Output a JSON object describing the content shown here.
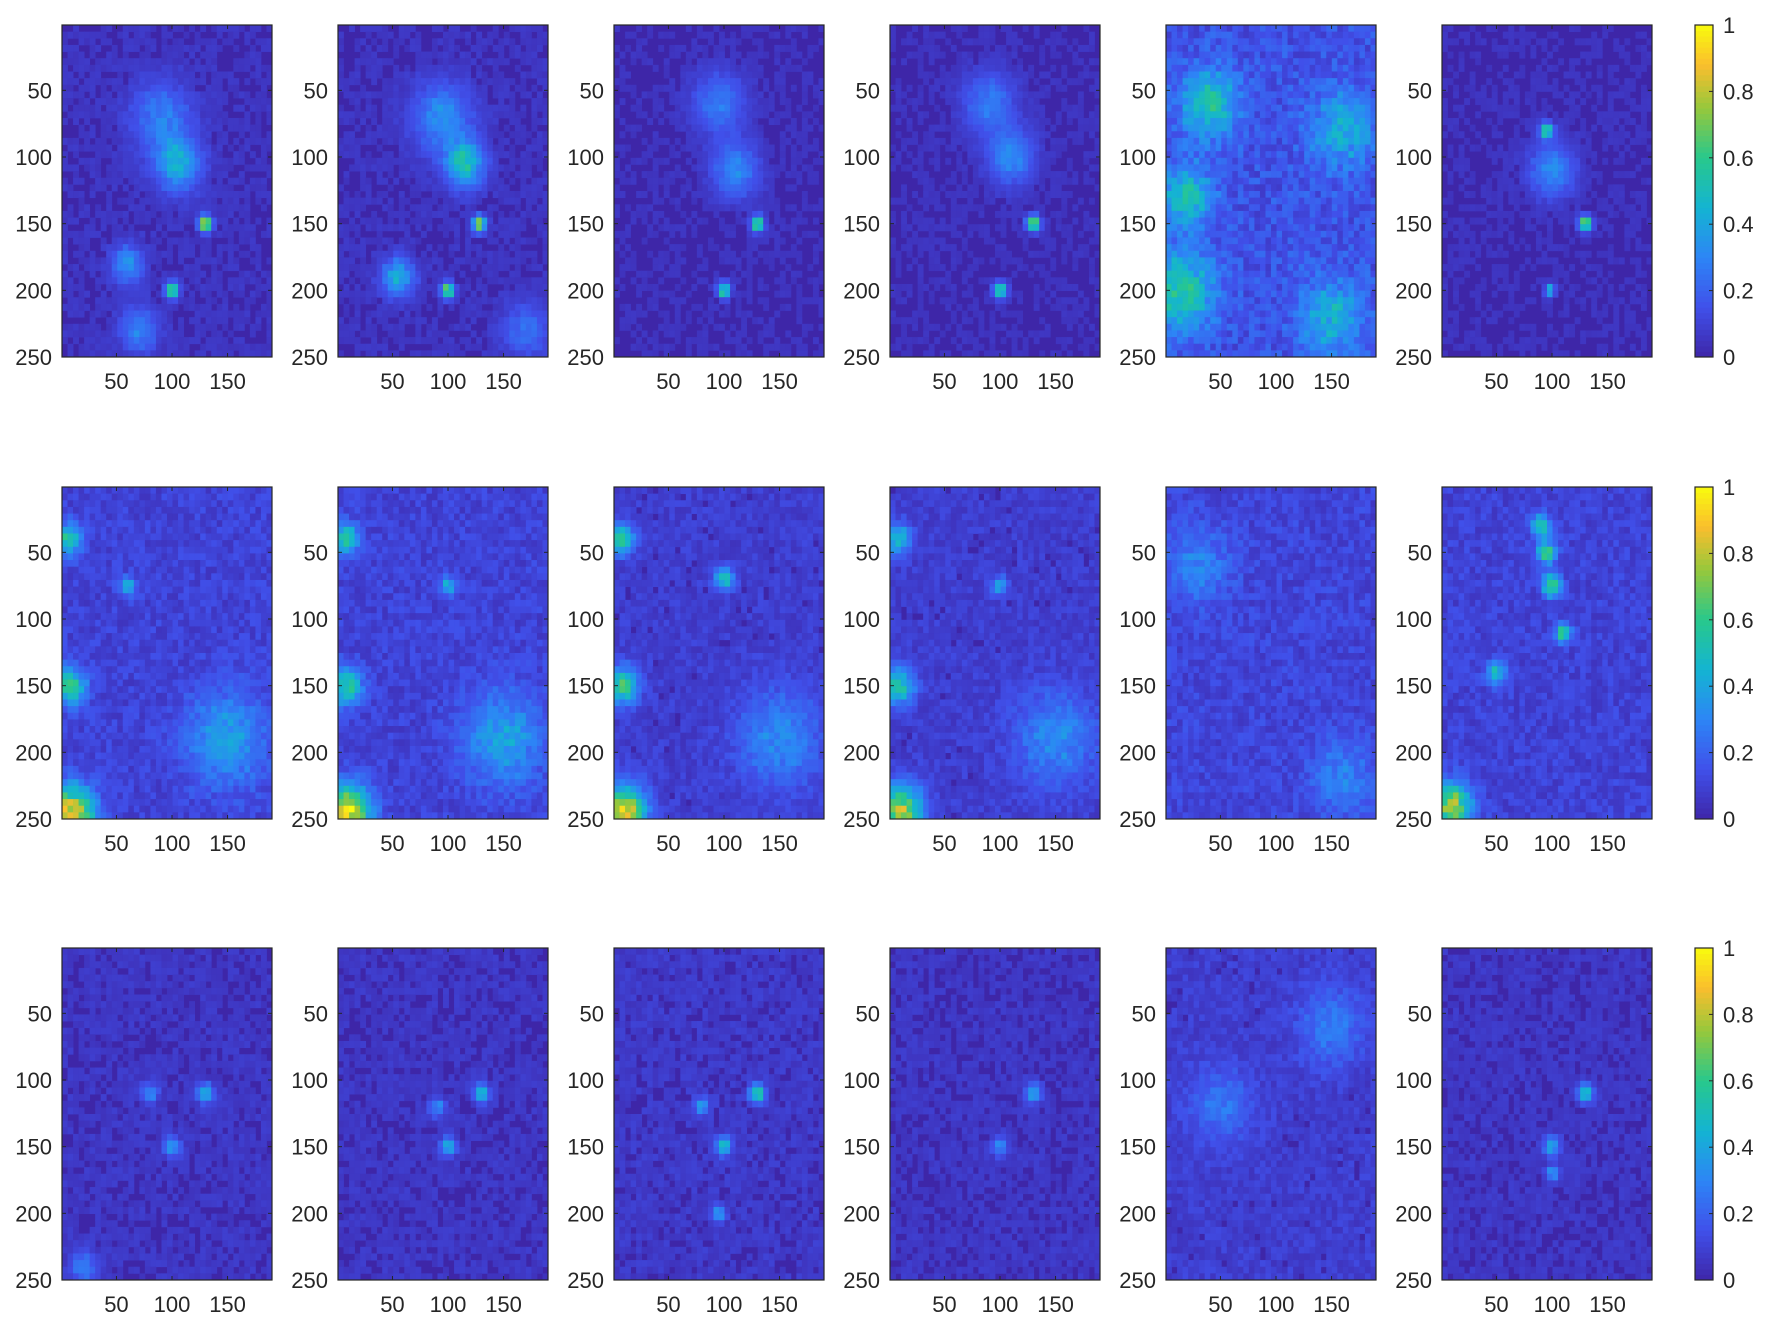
{
  "chart_data": {
    "type": "heatmap",
    "layout": {
      "rows": 3,
      "cols": 6
    },
    "image_size": {
      "rows": 250,
      "cols": 190
    },
    "xticks": [
      50,
      100,
      150
    ],
    "yticks": [
      50,
      100,
      150,
      200,
      250
    ],
    "xlim": [
      1,
      190
    ],
    "ylim": [
      1,
      250
    ],
    "clim": [
      0,
      1
    ],
    "colormap": "parula",
    "colorbar": {
      "ticks": [
        0,
        0.2,
        0.4,
        0.6,
        0.8,
        1
      ],
      "tick_labels": [
        "0",
        "0.2",
        "0.4",
        "0.6",
        "0.8",
        "1"
      ]
    },
    "background_color": "#3E26A8",
    "panels": [
      {
        "row": 0,
        "col": 0,
        "base": 0.06,
        "hotspots": [
          {
            "x": 130,
            "y": 150,
            "v": 0.85,
            "s": 4
          },
          {
            "x": 100,
            "y": 200,
            "v": 0.75,
            "s": 4
          },
          {
            "x": 105,
            "y": 105,
            "v": 0.4,
            "s": 14
          },
          {
            "x": 90,
            "y": 70,
            "v": 0.25,
            "s": 18
          },
          {
            "x": 70,
            "y": 230,
            "v": 0.25,
            "s": 12
          },
          {
            "x": 60,
            "y": 180,
            "v": 0.3,
            "s": 10
          }
        ]
      },
      {
        "row": 0,
        "col": 1,
        "base": 0.06,
        "hotspots": [
          {
            "x": 128,
            "y": 150,
            "v": 0.85,
            "s": 4
          },
          {
            "x": 100,
            "y": 200,
            "v": 0.75,
            "s": 4
          },
          {
            "x": 115,
            "y": 105,
            "v": 0.5,
            "s": 12
          },
          {
            "x": 95,
            "y": 70,
            "v": 0.3,
            "s": 18
          },
          {
            "x": 55,
            "y": 190,
            "v": 0.4,
            "s": 10
          },
          {
            "x": 170,
            "y": 230,
            "v": 0.2,
            "s": 14
          }
        ]
      },
      {
        "row": 0,
        "col": 2,
        "base": 0.05,
        "hotspots": [
          {
            "x": 130,
            "y": 150,
            "v": 0.7,
            "s": 4
          },
          {
            "x": 100,
            "y": 200,
            "v": 0.65,
            "s": 4
          },
          {
            "x": 110,
            "y": 110,
            "v": 0.3,
            "s": 14
          },
          {
            "x": 95,
            "y": 60,
            "v": 0.25,
            "s": 16
          }
        ]
      },
      {
        "row": 0,
        "col": 3,
        "base": 0.05,
        "hotspots": [
          {
            "x": 130,
            "y": 150,
            "v": 0.8,
            "s": 4
          },
          {
            "x": 100,
            "y": 200,
            "v": 0.7,
            "s": 4
          },
          {
            "x": 110,
            "y": 100,
            "v": 0.3,
            "s": 14
          },
          {
            "x": 90,
            "y": 60,
            "v": 0.25,
            "s": 16
          }
        ]
      },
      {
        "row": 0,
        "col": 4,
        "base": 0.18,
        "hotspots": [
          {
            "x": 15,
            "y": 200,
            "v": 0.45,
            "s": 20
          },
          {
            "x": 40,
            "y": 60,
            "v": 0.4,
            "s": 18
          },
          {
            "x": 20,
            "y": 130,
            "v": 0.4,
            "s": 16
          },
          {
            "x": 160,
            "y": 80,
            "v": 0.3,
            "s": 20
          },
          {
            "x": 150,
            "y": 220,
            "v": 0.3,
            "s": 20
          }
        ]
      },
      {
        "row": 0,
        "col": 5,
        "base": 0.05,
        "hotspots": [
          {
            "x": 130,
            "y": 150,
            "v": 0.75,
            "s": 4
          },
          {
            "x": 95,
            "y": 80,
            "v": 0.6,
            "s": 4
          },
          {
            "x": 98,
            "y": 200,
            "v": 0.55,
            "s": 3
          },
          {
            "x": 100,
            "y": 110,
            "v": 0.3,
            "s": 14
          }
        ]
      },
      {
        "row": 1,
        "col": 0,
        "base": 0.12,
        "hotspots": [
          {
            "x": 10,
            "y": 245,
            "v": 0.8,
            "s": 14
          },
          {
            "x": 8,
            "y": 150,
            "v": 0.55,
            "s": 10
          },
          {
            "x": 8,
            "y": 40,
            "v": 0.5,
            "s": 8
          },
          {
            "x": 150,
            "y": 190,
            "v": 0.3,
            "s": 25
          },
          {
            "x": 60,
            "y": 75,
            "v": 0.35,
            "s": 5
          }
        ]
      },
      {
        "row": 1,
        "col": 1,
        "base": 0.12,
        "hotspots": [
          {
            "x": 10,
            "y": 245,
            "v": 0.85,
            "s": 14
          },
          {
            "x": 8,
            "y": 150,
            "v": 0.5,
            "s": 10
          },
          {
            "x": 8,
            "y": 40,
            "v": 0.5,
            "s": 8
          },
          {
            "x": 150,
            "y": 190,
            "v": 0.3,
            "s": 25
          },
          {
            "x": 100,
            "y": 75,
            "v": 0.35,
            "s": 5
          }
        ]
      },
      {
        "row": 1,
        "col": 2,
        "base": 0.1,
        "hotspots": [
          {
            "x": 10,
            "y": 245,
            "v": 0.8,
            "s": 14
          },
          {
            "x": 8,
            "y": 150,
            "v": 0.55,
            "s": 10
          },
          {
            "x": 8,
            "y": 40,
            "v": 0.5,
            "s": 8
          },
          {
            "x": 100,
            "y": 70,
            "v": 0.45,
            "s": 6
          },
          {
            "x": 150,
            "y": 190,
            "v": 0.25,
            "s": 25
          }
        ]
      },
      {
        "row": 1,
        "col": 3,
        "base": 0.1,
        "hotspots": [
          {
            "x": 10,
            "y": 245,
            "v": 0.75,
            "s": 14
          },
          {
            "x": 8,
            "y": 150,
            "v": 0.5,
            "s": 10
          },
          {
            "x": 8,
            "y": 40,
            "v": 0.45,
            "s": 8
          },
          {
            "x": 100,
            "y": 75,
            "v": 0.35,
            "s": 5
          },
          {
            "x": 150,
            "y": 190,
            "v": 0.25,
            "s": 25
          }
        ]
      },
      {
        "row": 1,
        "col": 4,
        "base": 0.13,
        "hotspots": [
          {
            "x": 30,
            "y": 60,
            "v": 0.2,
            "s": 20
          },
          {
            "x": 160,
            "y": 220,
            "v": 0.2,
            "s": 20
          }
        ]
      },
      {
        "row": 1,
        "col": 5,
        "base": 0.12,
        "hotspots": [
          {
            "x": 10,
            "y": 240,
            "v": 0.7,
            "s": 12
          },
          {
            "x": 100,
            "y": 75,
            "v": 0.6,
            "s": 6
          },
          {
            "x": 95,
            "y": 50,
            "v": 0.55,
            "s": 6
          },
          {
            "x": 110,
            "y": 110,
            "v": 0.55,
            "s": 5
          },
          {
            "x": 50,
            "y": 140,
            "v": 0.45,
            "s": 6
          },
          {
            "x": 90,
            "y": 30,
            "v": 0.5,
            "s": 6
          }
        ]
      },
      {
        "row": 2,
        "col": 0,
        "base": 0.07,
        "hotspots": [
          {
            "x": 130,
            "y": 110,
            "v": 0.45,
            "s": 5
          },
          {
            "x": 100,
            "y": 150,
            "v": 0.35,
            "s": 5
          },
          {
            "x": 80,
            "y": 110,
            "v": 0.3,
            "s": 5
          },
          {
            "x": 20,
            "y": 240,
            "v": 0.25,
            "s": 8
          }
        ]
      },
      {
        "row": 2,
        "col": 1,
        "base": 0.07,
        "hotspots": [
          {
            "x": 130,
            "y": 110,
            "v": 0.45,
            "s": 5
          },
          {
            "x": 100,
            "y": 150,
            "v": 0.4,
            "s": 5
          },
          {
            "x": 90,
            "y": 120,
            "v": 0.3,
            "s": 5
          }
        ]
      },
      {
        "row": 2,
        "col": 2,
        "base": 0.08,
        "hotspots": [
          {
            "x": 130,
            "y": 110,
            "v": 0.55,
            "s": 5
          },
          {
            "x": 100,
            "y": 150,
            "v": 0.45,
            "s": 5
          },
          {
            "x": 95,
            "y": 200,
            "v": 0.35,
            "s": 4
          },
          {
            "x": 80,
            "y": 120,
            "v": 0.3,
            "s": 5
          }
        ]
      },
      {
        "row": 2,
        "col": 3,
        "base": 0.07,
        "hotspots": [
          {
            "x": 130,
            "y": 110,
            "v": 0.4,
            "s": 5
          },
          {
            "x": 100,
            "y": 150,
            "v": 0.3,
            "s": 5
          }
        ]
      },
      {
        "row": 2,
        "col": 4,
        "base": 0.1,
        "hotspots": [
          {
            "x": 150,
            "y": 60,
            "v": 0.2,
            "s": 20
          },
          {
            "x": 50,
            "y": 120,
            "v": 0.18,
            "s": 20
          }
        ]
      },
      {
        "row": 2,
        "col": 5,
        "base": 0.07,
        "hotspots": [
          {
            "x": 130,
            "y": 110,
            "v": 0.5,
            "s": 5
          },
          {
            "x": 100,
            "y": 150,
            "v": 0.4,
            "s": 5
          },
          {
            "x": 100,
            "y": 170,
            "v": 0.35,
            "s": 4
          }
        ]
      }
    ]
  }
}
